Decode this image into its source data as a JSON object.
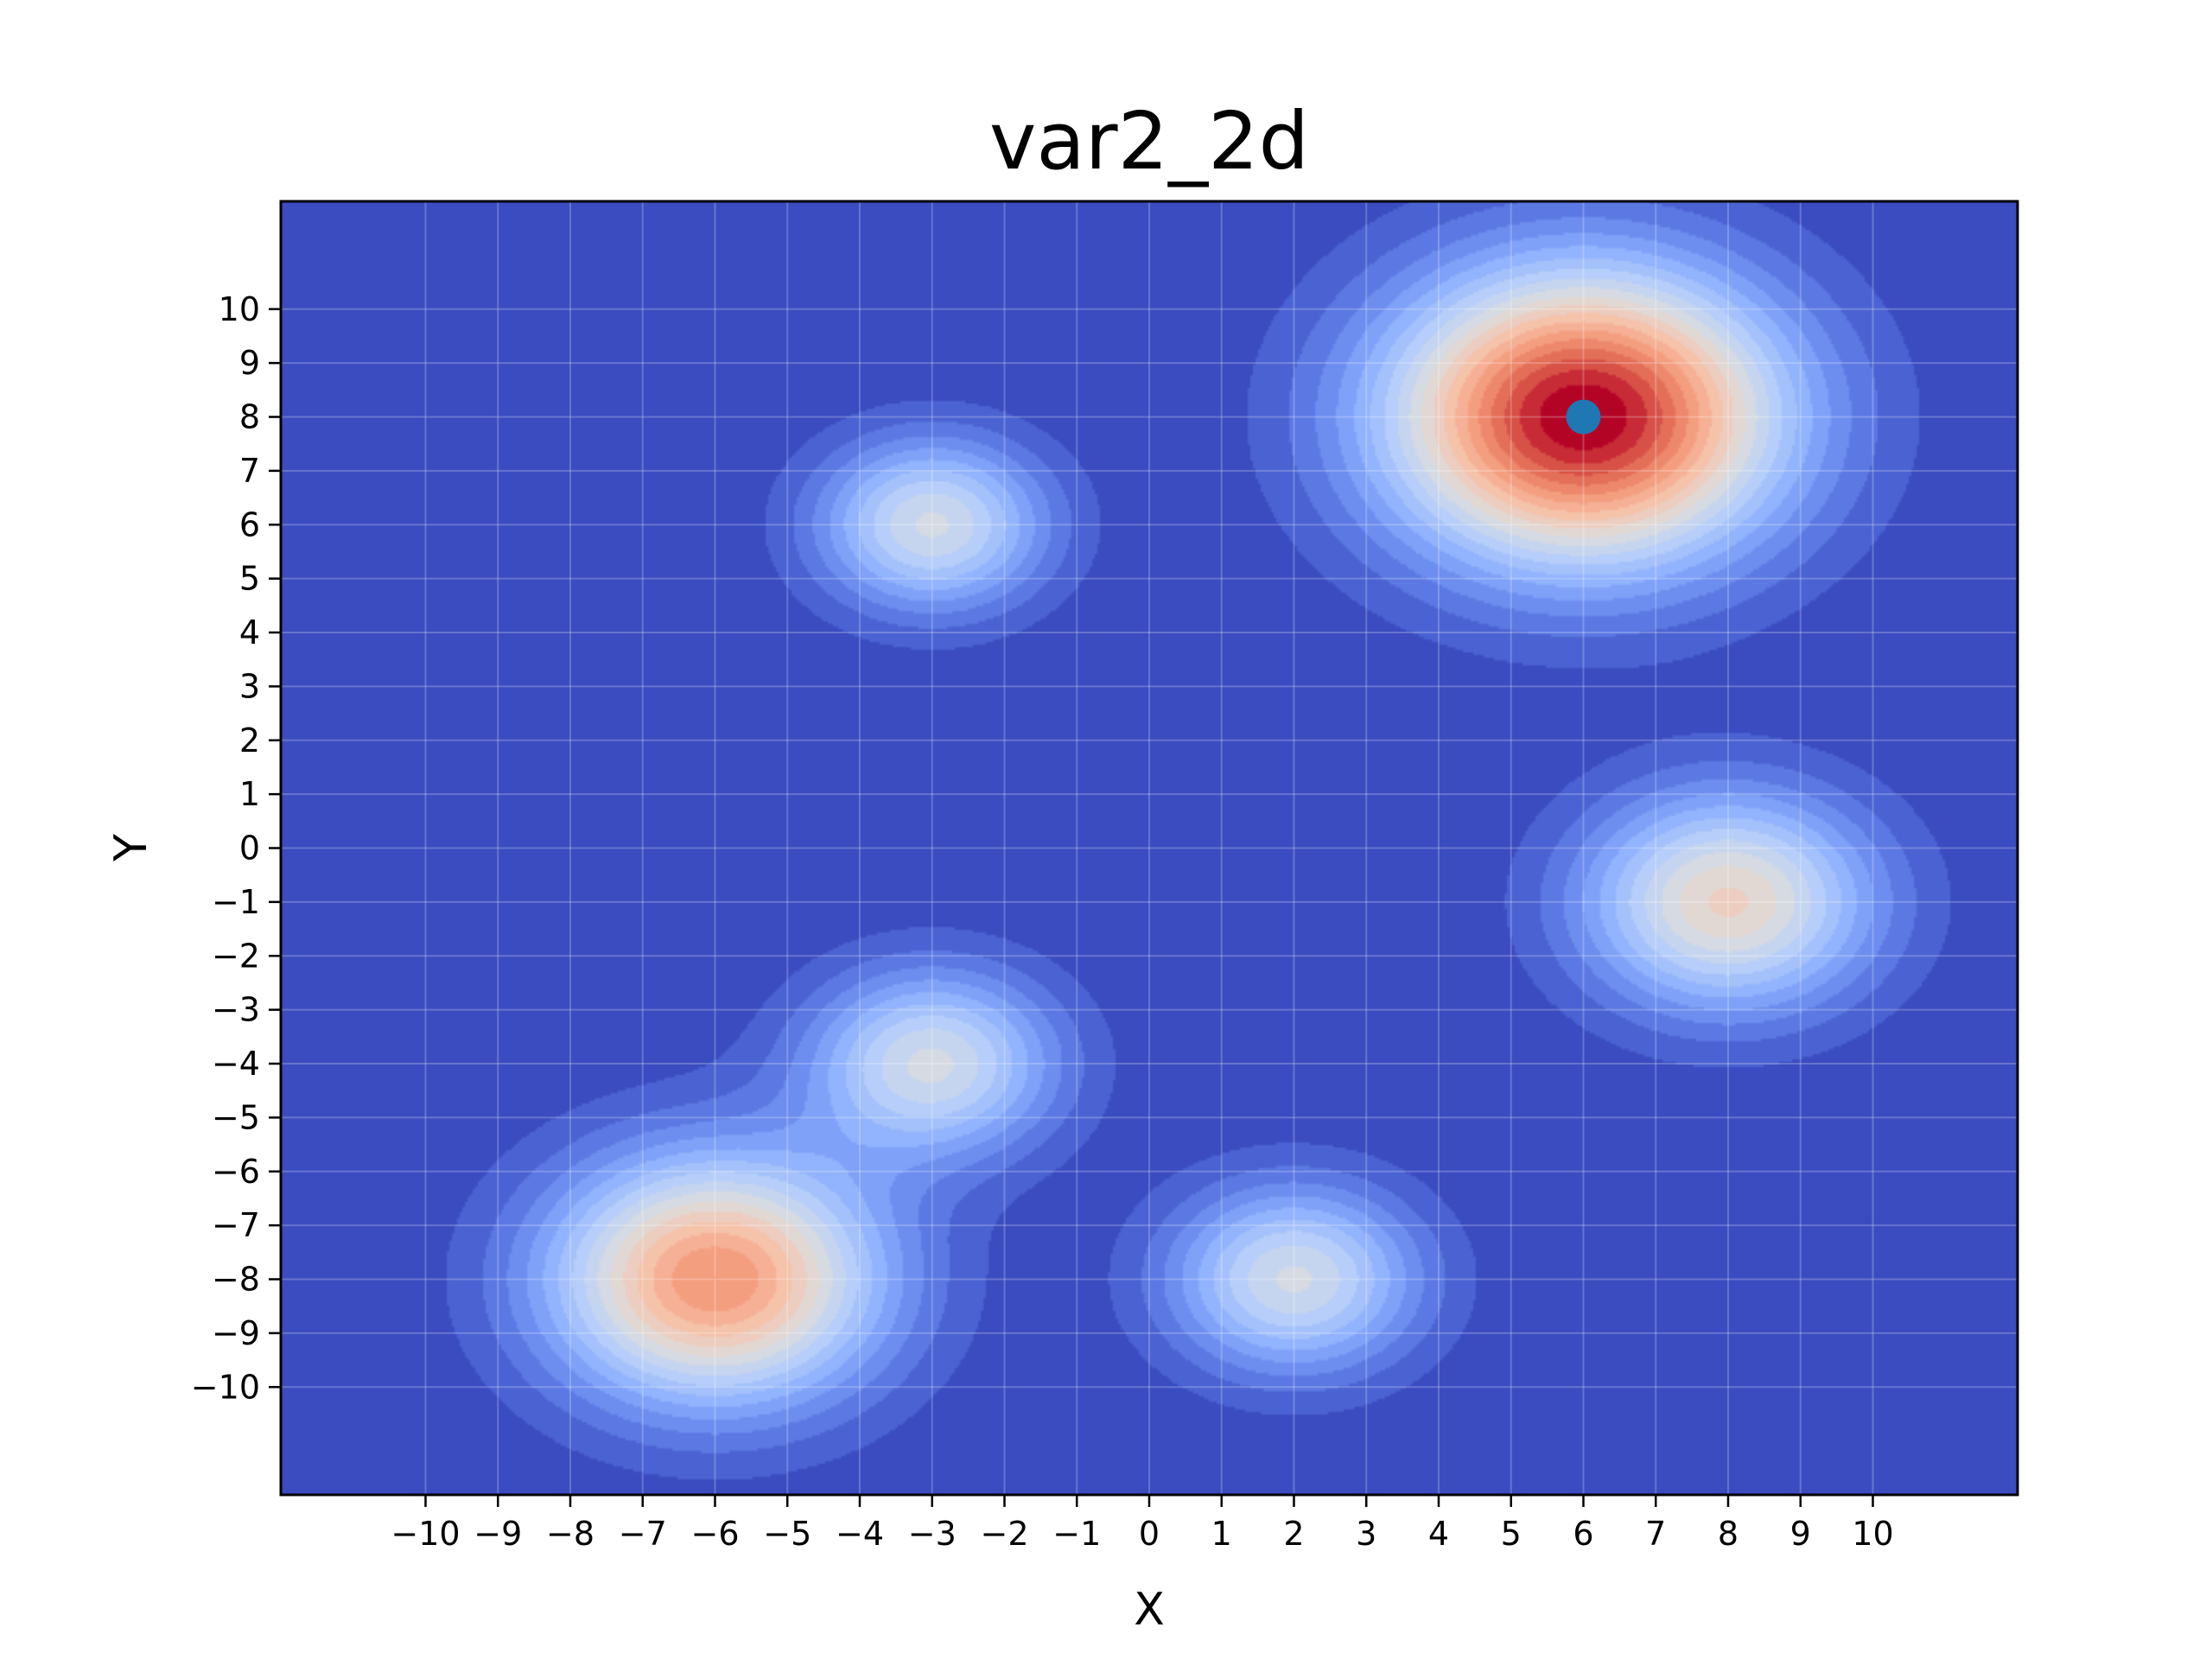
{
  "chart_data": {
    "type": "heatmap",
    "title": "var2_2d",
    "xlabel": "X",
    "ylabel": "Y",
    "xlim": [
      -12,
      12
    ],
    "ylim": [
      -12,
      12
    ],
    "xticks": [
      -10,
      -9,
      -8,
      -7,
      -6,
      -5,
      -4,
      -3,
      -2,
      -1,
      0,
      1,
      2,
      3,
      4,
      5,
      6,
      7,
      8,
      9,
      10
    ],
    "yticks": [
      -10,
      -9,
      -8,
      -7,
      -6,
      -5,
      -4,
      -3,
      -2,
      -1,
      0,
      1,
      2,
      3,
      4,
      5,
      6,
      7,
      8,
      9,
      10
    ],
    "grid": true,
    "colormap": "coolwarm",
    "peaks": [
      {
        "x": 6,
        "y": 8,
        "amplitude": 1.0,
        "sigma": 1.9
      },
      {
        "x": -6,
        "y": -8,
        "amplitude": 0.75,
        "sigma": 1.6
      },
      {
        "x": 8,
        "y": -1,
        "amplitude": 0.56,
        "sigma": 1.4
      },
      {
        "x": -3,
        "y": 6,
        "amplitude": 0.46,
        "sigma": 1.1
      },
      {
        "x": -3,
        "y": -4,
        "amplitude": 0.46,
        "sigma": 1.2
      },
      {
        "x": 2,
        "y": -8,
        "amplitude": 0.46,
        "sigma": 1.2
      }
    ],
    "marker": {
      "x": 6,
      "y": 8,
      "color": "#1f77b4"
    }
  }
}
